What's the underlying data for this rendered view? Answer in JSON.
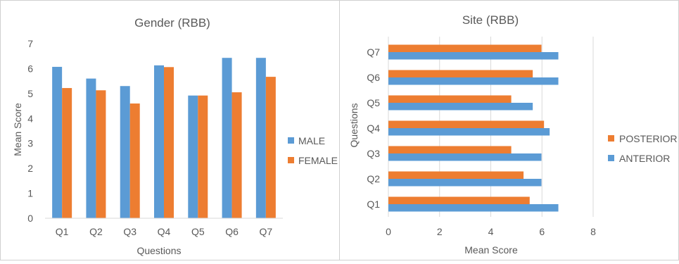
{
  "colors": {
    "male": "#5b9bd5",
    "female": "#ed7d31",
    "axis_text": "#595959",
    "grid": "#d9d9d9"
  },
  "chart_data": [
    {
      "type": "bar",
      "title": "Gender (RBB)",
      "xlabel": "Questions",
      "ylabel": "Mean Score",
      "categories": [
        "Q1",
        "Q2",
        "Q3",
        "Q4",
        "Q5",
        "Q6",
        "Q7"
      ],
      "ylim": [
        0,
        7
      ],
      "yticks": [
        "0",
        "1",
        "2",
        "3",
        "4",
        "5",
        "6",
        "7"
      ],
      "grid": false,
      "legend_position": "right",
      "series": [
        {
          "name": "MALE",
          "color": "#5b9bd5",
          "values": [
            6.07,
            5.6,
            5.3,
            6.13,
            4.92,
            6.43,
            6.43
          ]
        },
        {
          "name": "FEMALE",
          "color": "#ed7d31",
          "values": [
            5.22,
            5.13,
            4.6,
            6.06,
            4.92,
            5.05,
            5.67
          ]
        }
      ]
    },
    {
      "type": "bar",
      "orientation": "horizontal",
      "title": "Site (RBB)",
      "xlabel": "Mean Score",
      "ylabel": "Questions",
      "categories": [
        "Q1",
        "Q2",
        "Q3",
        "Q4",
        "Q5",
        "Q6",
        "Q7"
      ],
      "xlim": [
        0,
        8
      ],
      "xticks": [
        "0",
        "2",
        "4",
        "6",
        "8"
      ],
      "grid": true,
      "legend_position": "right",
      "series": [
        {
          "name": "POSTERIOR",
          "color": "#ed7d31",
          "values": [
            5.52,
            5.28,
            4.8,
            6.08,
            4.8,
            5.64,
            5.98
          ]
        },
        {
          "name": "ANTERIOR",
          "color": "#5b9bd5",
          "values": [
            6.64,
            5.98,
            5.98,
            6.3,
            5.64,
            6.64,
            6.64
          ]
        }
      ]
    }
  ]
}
